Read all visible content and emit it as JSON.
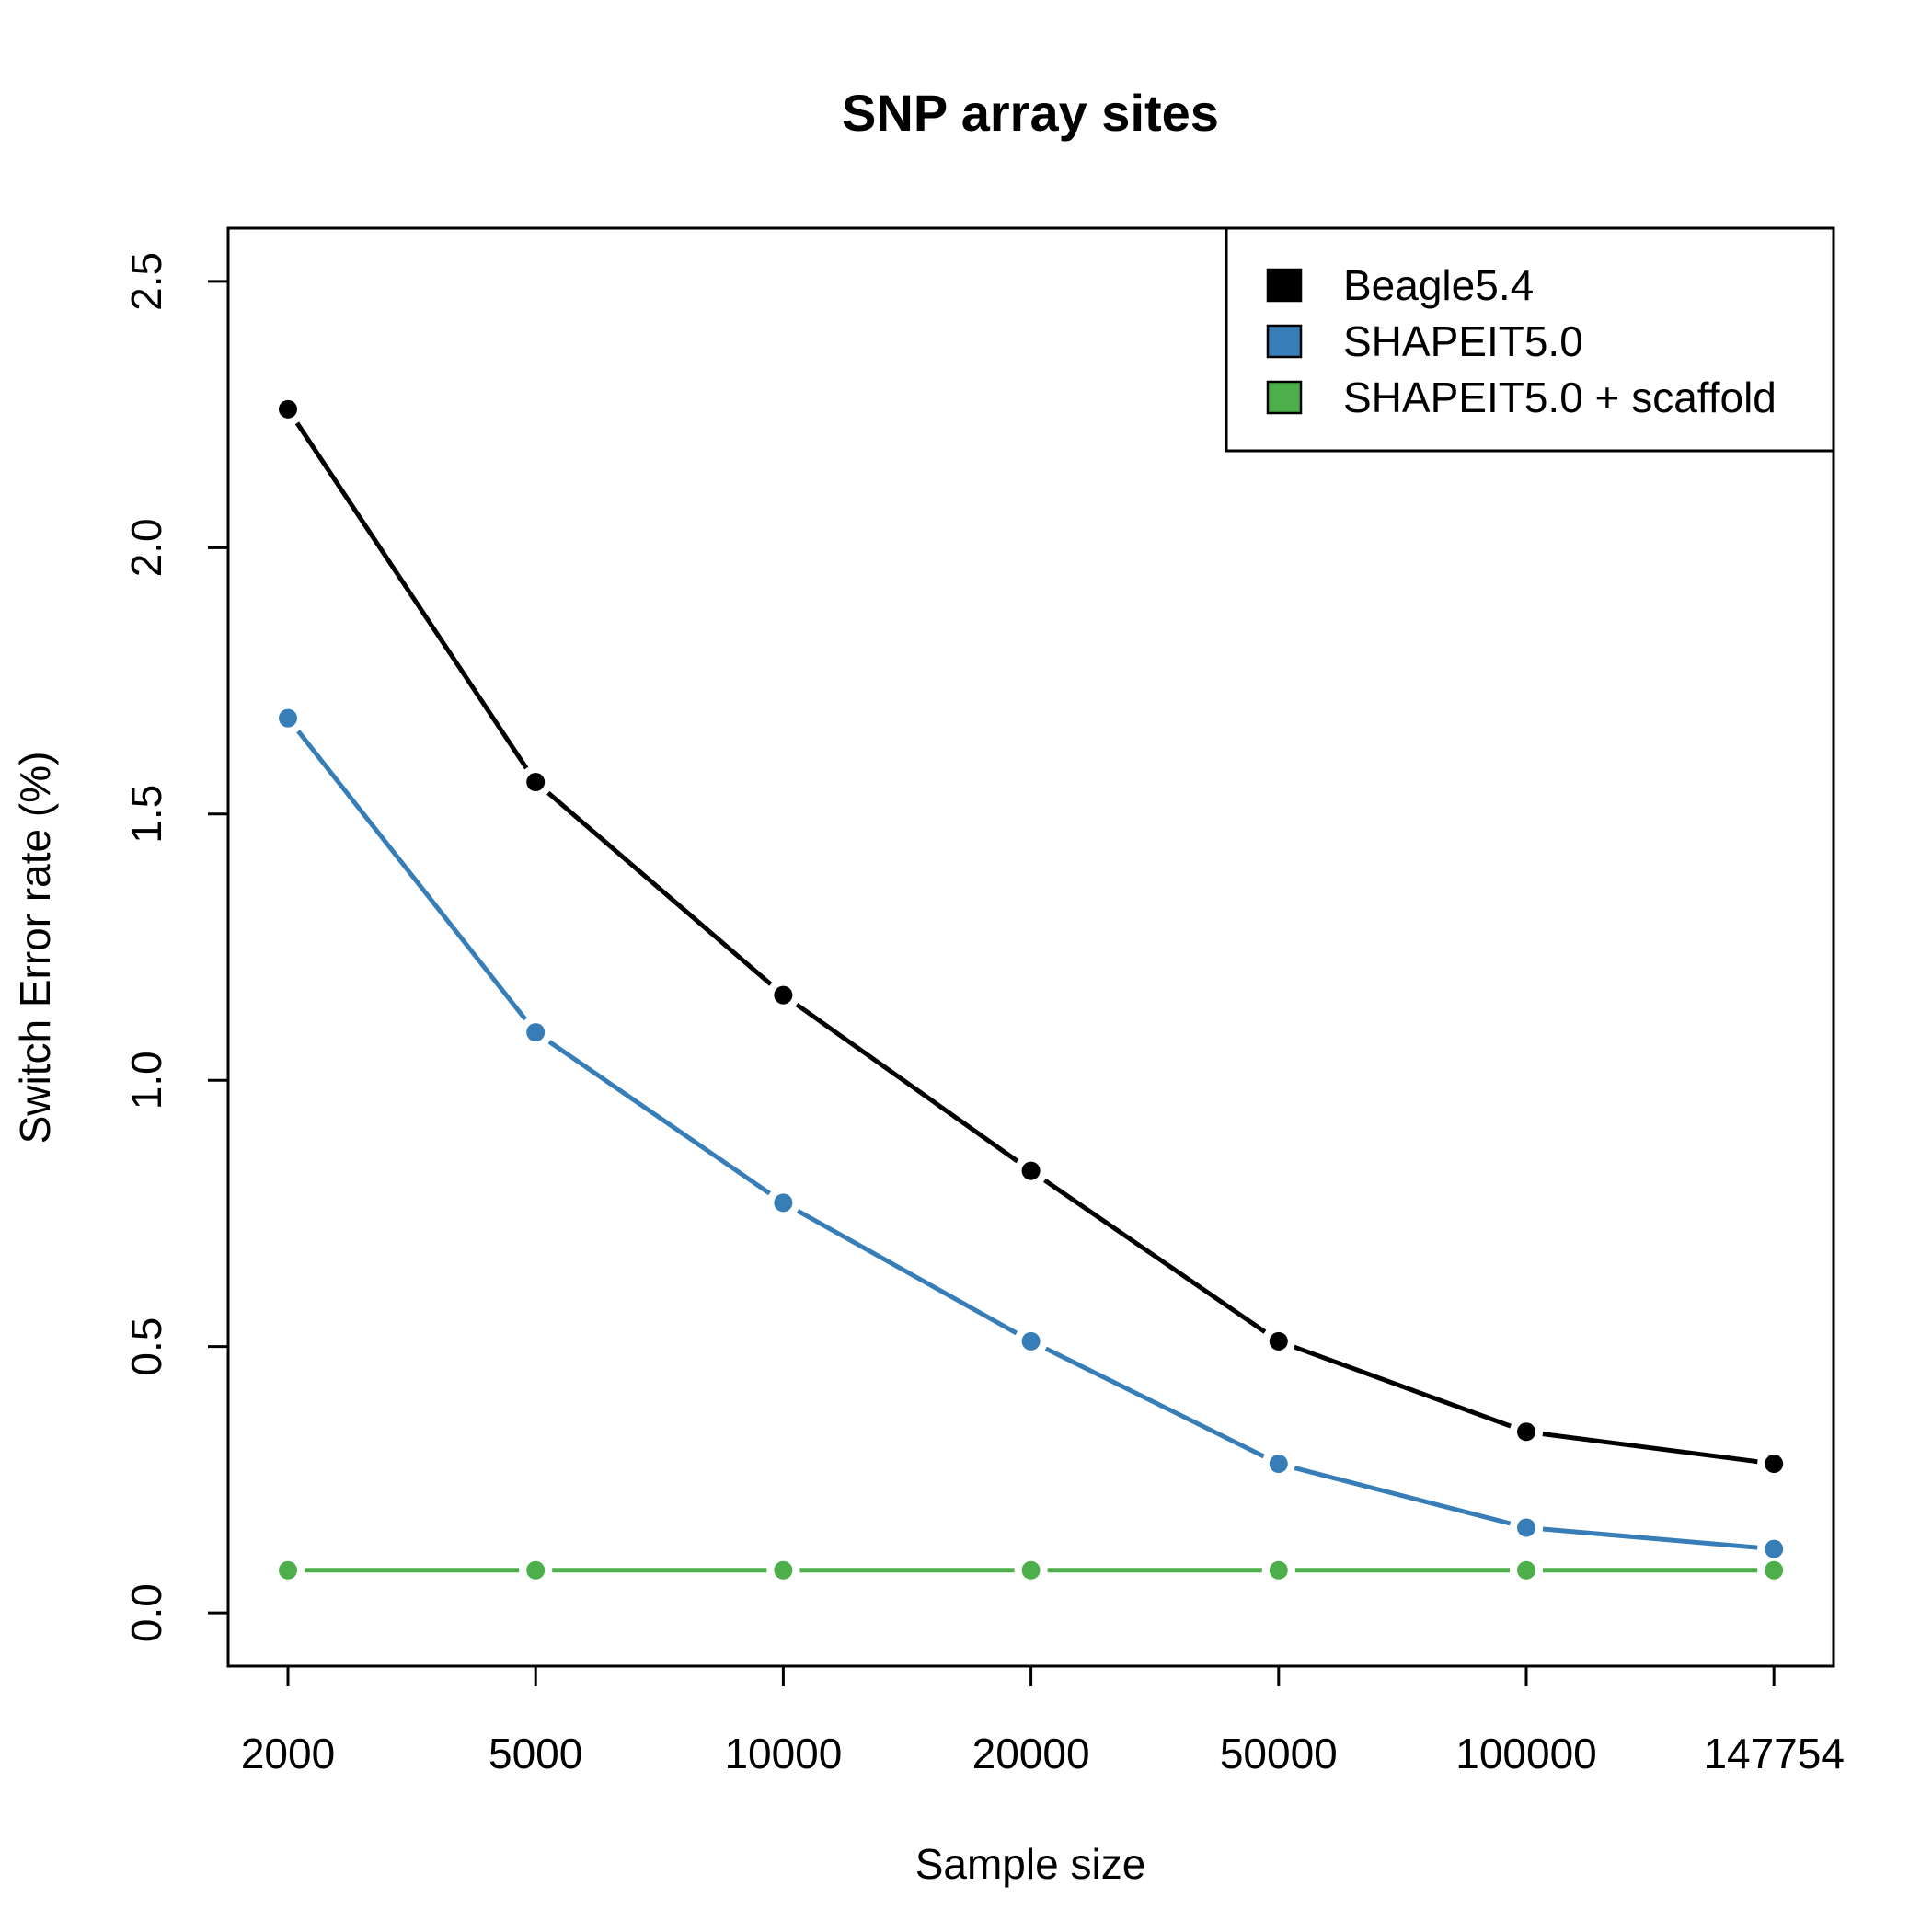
{
  "chart_data": {
    "type": "line",
    "title": "SNP array sites",
    "xlabel": "Sample size",
    "ylabel": "Switch Error rate (%)",
    "categories": [
      "2000",
      "5000",
      "10000",
      "20000",
      "50000",
      "100000",
      "147754"
    ],
    "ylim": [
      -0.1,
      2.6
    ],
    "yticks": [
      "0.0",
      "0.5",
      "1.0",
      "1.5",
      "2.0",
      "2.5"
    ],
    "grid": false,
    "legend_position": "top-right",
    "series": [
      {
        "name": "Beagle5.4",
        "color": "#000000",
        "values": [
          2.26,
          1.56,
          1.16,
          0.83,
          0.51,
          0.34,
          0.28
        ]
      },
      {
        "name": "SHAPEIT5.0",
        "color": "#377eb8",
        "values": [
          1.68,
          1.09,
          0.77,
          0.51,
          0.28,
          0.16,
          0.12
        ]
      },
      {
        "name": "SHAPEIT5.0 + scaffold",
        "color": "#4daf4a",
        "values": [
          0.08,
          0.08,
          0.08,
          0.08,
          0.08,
          0.08,
          0.08
        ]
      }
    ]
  }
}
